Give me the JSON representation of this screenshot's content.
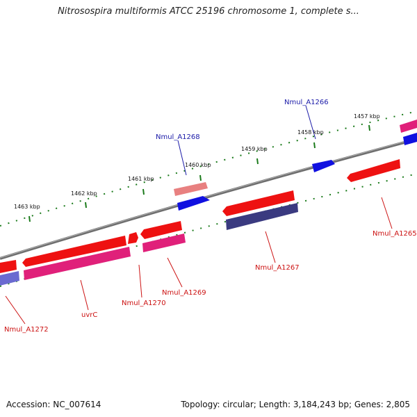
{
  "header": {
    "title": "Nitrosospira multiformis ATCC 25196 chromosome 1, complete s..."
  },
  "footer": {
    "accession_label": "Accession: NC_007614",
    "summary": "Topology: circular; Length: 3,184,243 bp; Genes: 2,805"
  },
  "scale": {
    "ticks": [
      {
        "label": "1457 kbp"
      },
      {
        "label": "1458 kbp"
      },
      {
        "label": "1459 kbp"
      },
      {
        "label": "1460 kbp"
      },
      {
        "label": "1461 kbp"
      },
      {
        "label": "1462 kbp"
      },
      {
        "label": "1463 kbp"
      }
    ]
  },
  "genes": {
    "labels": [
      {
        "name": "Nmul_A1266",
        "color": "#1a1aa8"
      },
      {
        "name": "Nmul_A1268",
        "color": "#1a1aa8"
      },
      {
        "name": "Nmul_A1265",
        "color": "#cc1111"
      },
      {
        "name": "Nmul_A1267",
        "color": "#cc1111"
      },
      {
        "name": "Nmul_A1269",
        "color": "#cc1111"
      },
      {
        "name": "Nmul_A1270",
        "color": "#cc1111"
      },
      {
        "name": "uvrC",
        "color": "#cc1111"
      },
      {
        "name": "Nmul_A1272",
        "color": "#cc1111"
      }
    ]
  },
  "colors": {
    "red_gene": "#ee1111",
    "pink_gene": "#e0207a",
    "blue_gene": "#1010e0",
    "navy_gene": "#3a3a80",
    "light_red_gene": "#e07070",
    "lavender_gene": "#6a6ad0",
    "backbone": "#808080",
    "tick": "#1a7a1a"
  }
}
